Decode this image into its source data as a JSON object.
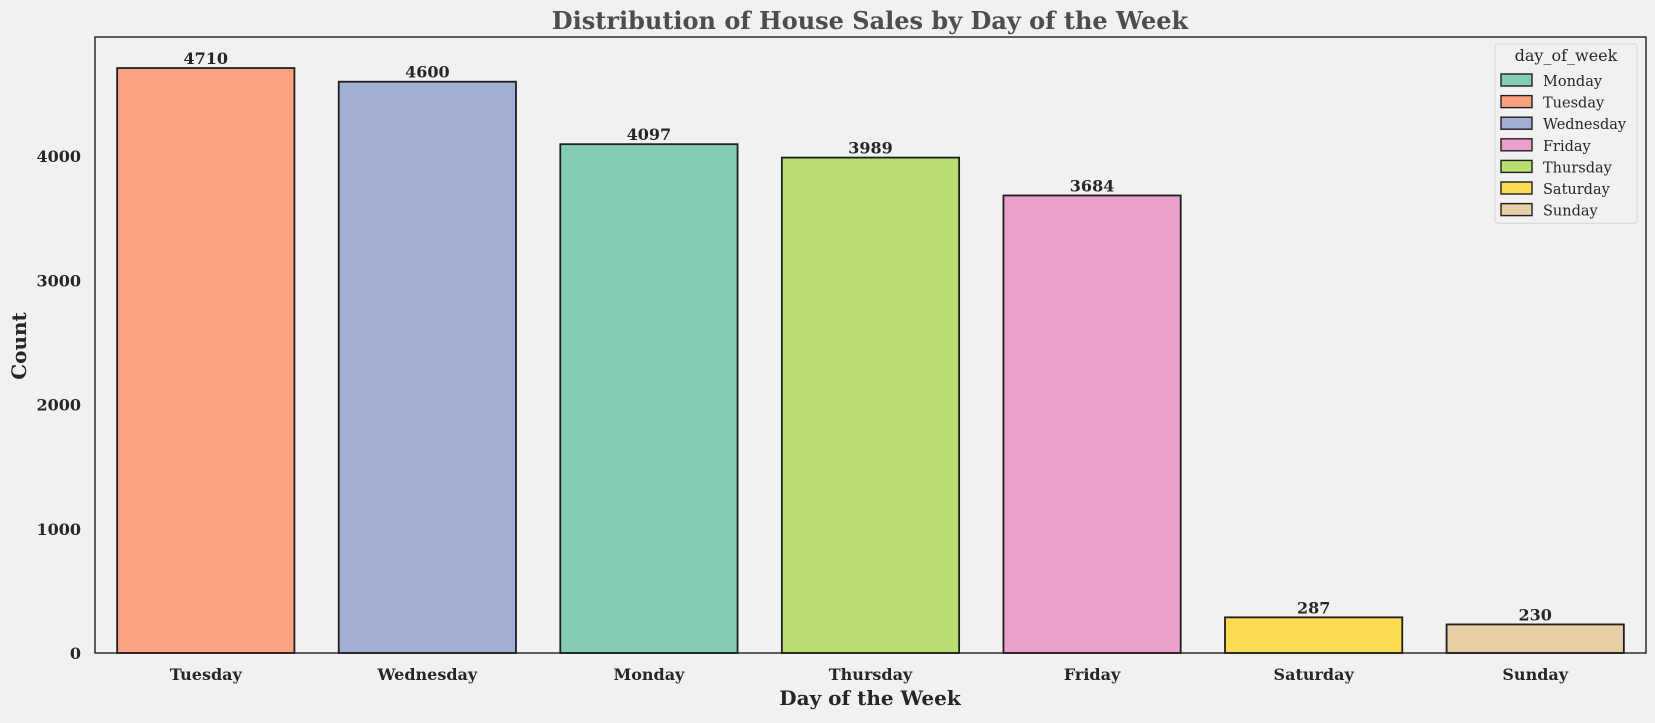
{
  "chart_data": {
    "type": "bar",
    "title": "Distribution of House Sales by Day of the Week",
    "xlabel": "Day of the Week",
    "ylabel": "Count",
    "categories": [
      "Tuesday",
      "Wednesday",
      "Monday",
      "Thursday",
      "Friday",
      "Saturday",
      "Sunday"
    ],
    "values": [
      4710,
      4600,
      4097,
      3989,
      3684,
      287,
      230
    ],
    "bar_colors": [
      "#fca281",
      "#a0afd3",
      "#84cdb4",
      "#b8de72",
      "#eb9fcb",
      "#fbdc53",
      "#e6cda5"
    ],
    "ylim": [
      0,
      4960
    ],
    "yticks": [
      0,
      1000,
      2000,
      3000,
      4000
    ],
    "grid": false,
    "legend": {
      "title": "day_of_week",
      "placement": "top-right",
      "entries": [
        {
          "label": "Monday",
          "color": "#84cdb4"
        },
        {
          "label": "Tuesday",
          "color": "#fca281"
        },
        {
          "label": "Wednesday",
          "color": "#a0afd3"
        },
        {
          "label": "Friday",
          "color": "#eb9fcb"
        },
        {
          "label": "Thursday",
          "color": "#b8de72"
        },
        {
          "label": "Saturday",
          "color": "#fbdc53"
        },
        {
          "label": "Sunday",
          "color": "#e6cda5"
        }
      ]
    },
    "colors": {
      "background": "#f1f1f1",
      "title": "#4d4d4d",
      "text": "#262626",
      "bar_edge": "#1f1f1f"
    }
  }
}
